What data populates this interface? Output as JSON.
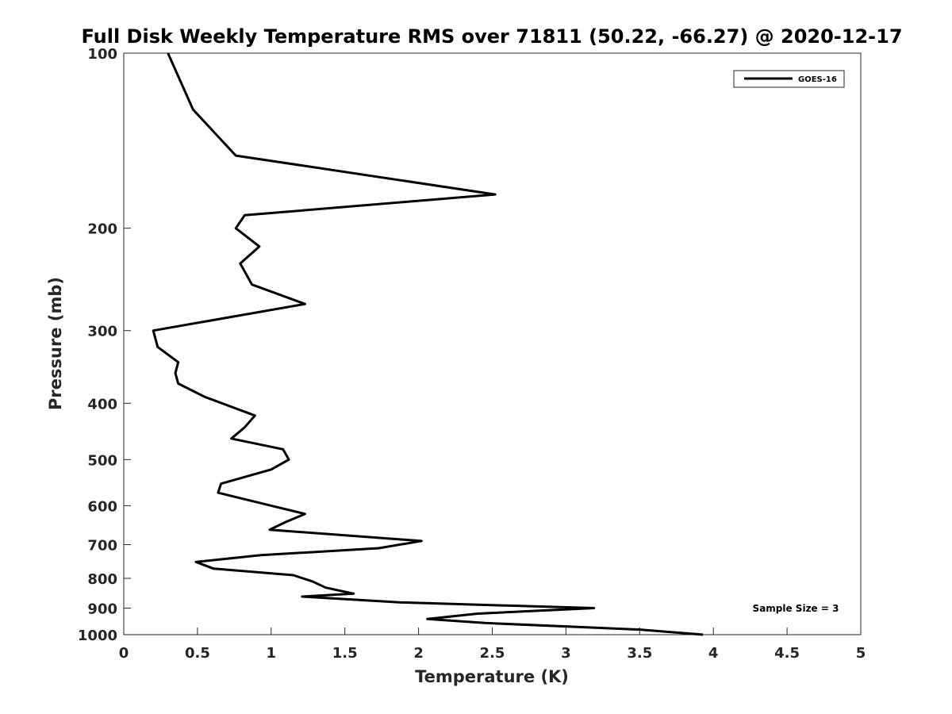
{
  "chart_data": {
    "type": "line",
    "title": "Full Disk Weekly Temperature RMS over 71811 (50.22, -66.27) @ 2020-12-17",
    "xlabel": "Temperature (K)",
    "ylabel": "Pressure (mb)",
    "xlim": [
      0,
      5
    ],
    "ylim": [
      100,
      1000
    ],
    "yscale": "log",
    "y_reversed": true,
    "x_ticks": [
      0,
      0.5,
      1,
      1.5,
      2,
      2.5,
      3,
      3.5,
      4,
      4.5,
      5
    ],
    "x_tick_labels": [
      "0",
      "0.5",
      "1",
      "1.5",
      "2",
      "2.5",
      "3",
      "3.5",
      "4",
      "4.5",
      "5"
    ],
    "y_ticks": [
      100,
      200,
      300,
      400,
      500,
      600,
      700,
      800,
      900,
      1000
    ],
    "y_tick_labels": [
      "100",
      "200",
      "300",
      "400",
      "500",
      "600",
      "700",
      "800",
      "900",
      "1000"
    ],
    "grid": false,
    "legend_position": "top-right",
    "annotation": "Sample Size = 3",
    "series": [
      {
        "name": "GOES-16",
        "color": "#000000",
        "points": [
          [
            0.3,
            100
          ],
          [
            0.47,
            125
          ],
          [
            0.76,
            150
          ],
          [
            2.52,
            175
          ],
          [
            0.82,
            190
          ],
          [
            0.76,
            200
          ],
          [
            0.92,
            215
          ],
          [
            0.79,
            230
          ],
          [
            0.87,
            250
          ],
          [
            1.23,
            270
          ],
          [
            0.2,
            300
          ],
          [
            0.23,
            320
          ],
          [
            0.37,
            340
          ],
          [
            0.35,
            355
          ],
          [
            0.37,
            370
          ],
          [
            0.55,
            390
          ],
          [
            0.89,
            420
          ],
          [
            0.82,
            440
          ],
          [
            0.73,
            460
          ],
          [
            1.08,
            480
          ],
          [
            1.12,
            500
          ],
          [
            1.0,
            520
          ],
          [
            0.66,
            550
          ],
          [
            0.64,
            570
          ],
          [
            1.0,
            600
          ],
          [
            1.23,
            620
          ],
          [
            1.1,
            640
          ],
          [
            0.99,
            660
          ],
          [
            2.02,
            690
          ],
          [
            1.73,
            710
          ],
          [
            0.93,
            730
          ],
          [
            0.49,
            750
          ],
          [
            0.61,
            770
          ],
          [
            1.15,
            790
          ],
          [
            1.28,
            810
          ],
          [
            1.37,
            830
          ],
          [
            1.56,
            850
          ],
          [
            1.21,
            860
          ],
          [
            1.87,
            880
          ],
          [
            3.19,
            900
          ],
          [
            2.4,
            920
          ],
          [
            2.06,
            940
          ],
          [
            2.45,
            955
          ],
          [
            3.5,
            980
          ],
          [
            3.93,
            1000
          ]
        ]
      }
    ]
  }
}
